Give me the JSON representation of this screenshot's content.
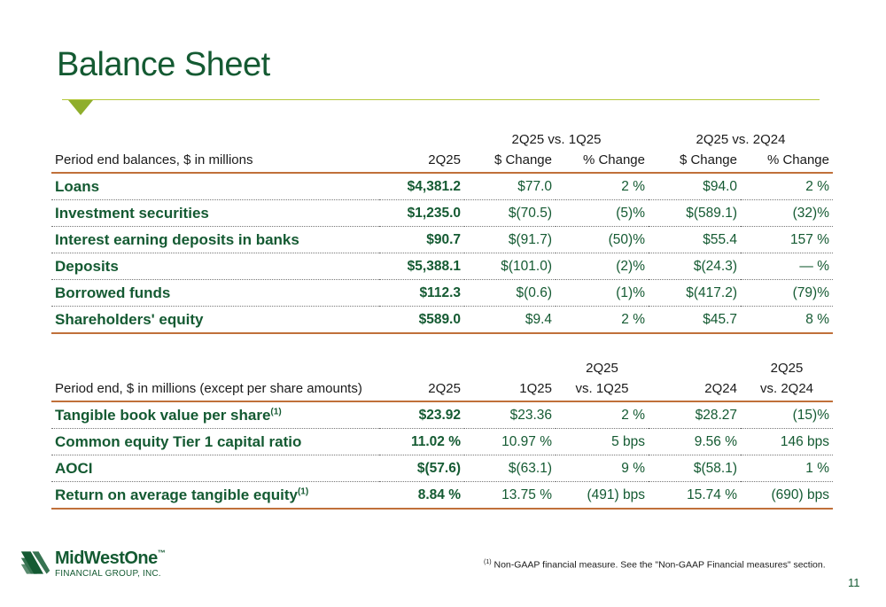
{
  "title": "Balance Sheet",
  "table1": {
    "group_headers": [
      "2Q25 vs. 1Q25",
      "2Q25 vs. 2Q24"
    ],
    "headers": [
      "Period end balances, $ in millions",
      "2Q25",
      "$ Change",
      "% Change",
      "$ Change",
      "% Change"
    ],
    "rows": [
      {
        "label": "Loans",
        "c1": "$4,381.2",
        "c2": "$77.0",
        "c3": "2 %",
        "c4": "$94.0",
        "c5": "2 %"
      },
      {
        "label": "Investment securities",
        "c1": "$1,235.0",
        "c2": "$(70.5)",
        "c3": "(5)%",
        "c4": "$(589.1)",
        "c5": "(32)%"
      },
      {
        "label": "Interest earning deposits in banks",
        "c1": "$90.7",
        "c2": "$(91.7)",
        "c3": "(50)%",
        "c4": "$55.4",
        "c5": "157 %"
      },
      {
        "label": "Deposits",
        "c1": "$5,388.1",
        "c2": "$(101.0)",
        "c3": "(2)%",
        "c4": "$(24.3)",
        "c5": "— %"
      },
      {
        "label": "Borrowed funds",
        "c1": "$112.3",
        "c2": "$(0.6)",
        "c3": "(1)%",
        "c4": "$(417.2)",
        "c5": "(79)%"
      },
      {
        "label": "Shareholders' equity",
        "c1": "$589.0",
        "c2": "$9.4",
        "c3": "2 %",
        "c4": "$45.7",
        "c5": "8 %"
      }
    ]
  },
  "table2": {
    "group_headers": [
      "2Q25",
      "2Q25"
    ],
    "headers": [
      "Period end, $ in millions (except per share amounts)",
      "2Q25",
      "1Q25",
      "vs. 1Q25",
      "2Q24",
      "vs. 2Q24"
    ],
    "rows": [
      {
        "label": "Tangible book value per share",
        "sup": "(1)",
        "c1": "$23.92",
        "c2": "$23.36",
        "c3": "2 %",
        "c4": "$28.27",
        "c5": "(15)%"
      },
      {
        "label": "Common equity Tier 1 capital ratio",
        "sup": "",
        "c1": "11.02 %",
        "c2": "10.97 %",
        "c3": "5 bps",
        "c4": "9.56 %",
        "c5": "146 bps"
      },
      {
        "label": "AOCI",
        "sup": "",
        "c1": "$(57.6)",
        "c2": "$(63.1)",
        "c3": "9 %",
        "c4": "$(58.1)",
        "c5": "1 %"
      },
      {
        "label": "Return on average tangible equity",
        "sup": "(1)",
        "c1": "8.84 %",
        "c2": "13.75 %",
        "c3": "(491) bps",
        "c4": "15.74 %",
        "c5": "(690) bps"
      }
    ]
  },
  "footnote": {
    "marker": "(1)",
    "text": "Non-GAAP financial measure. See the \"Non-GAAP Financial measures\" section."
  },
  "logo": {
    "name": "MidWestOne",
    "tm": "™",
    "subtitle": "FINANCIAL GROUP, INC."
  },
  "page_number": "11",
  "colors": {
    "title": "#145a32",
    "accent_rule": "#b5c93a",
    "table_rule": "#c0703a"
  }
}
